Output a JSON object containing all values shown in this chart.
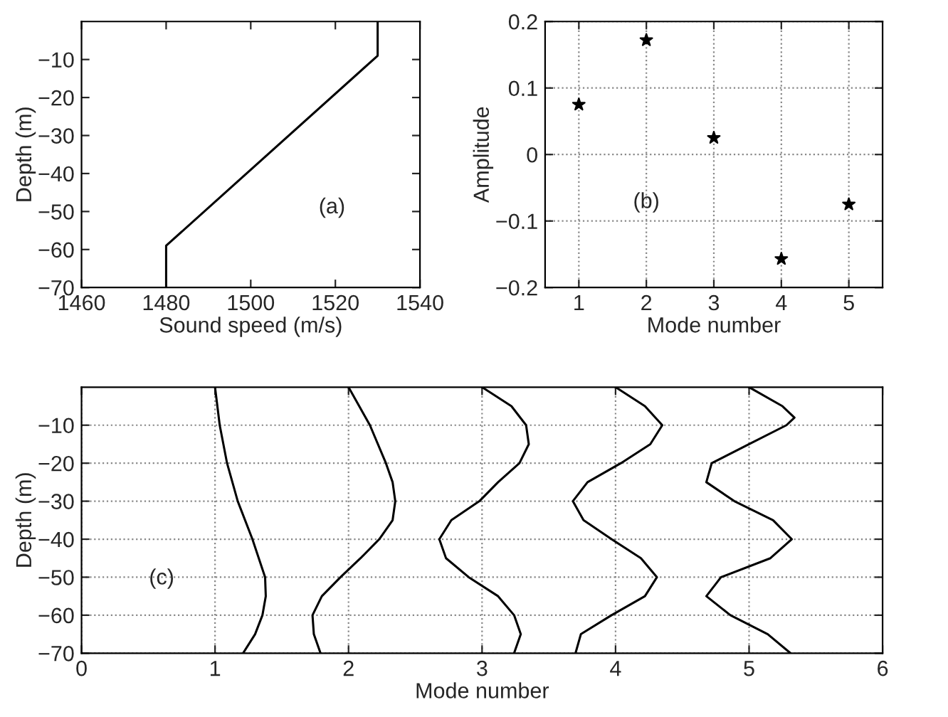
{
  "chart_data": [
    {
      "type": "line",
      "xlabel": "Sound speed (m/s)",
      "ylabel": "Depth (m)",
      "xlim": [
        1460,
        1540
      ],
      "xticks": [
        1460,
        1480,
        1500,
        1520,
        1540
      ],
      "ylim": [
        -70,
        0
      ],
      "yticks": [
        -70,
        -60,
        -50,
        -40,
        -30,
        -20,
        -10
      ],
      "grid": false,
      "legend": false,
      "marker": "none",
      "line_style": "solid",
      "annotations": [
        "(a)"
      ],
      "series": [
        {
          "color": "#000000",
          "x": [
            1530,
            1530,
            1480,
            1480
          ],
          "values": [
            0,
            -9,
            -59,
            -70
          ]
        }
      ]
    },
    {
      "type": "scatter",
      "xlabel": "Mode number",
      "ylabel": "Amplitude",
      "xlim": [
        0.5,
        5.5
      ],
      "xticks": [
        1,
        2,
        3,
        4,
        5
      ],
      "ylim": [
        -0.2,
        0.2
      ],
      "yticks": [
        -0.2,
        -0.1,
        0,
        0.1,
        0.2
      ],
      "grid": true,
      "legend": false,
      "marker": "star",
      "annotations": [
        "(b)"
      ],
      "series": [
        {
          "color": "#000000",
          "x": [
            1,
            2,
            3,
            4,
            5
          ],
          "values": [
            0.075,
            0.172,
            0.025,
            -0.157,
            -0.075
          ]
        }
      ]
    },
    {
      "type": "line",
      "xlabel": "Mode number",
      "ylabel": "Depth (m)",
      "xlim": [
        0,
        6
      ],
      "xticks": [
        0,
        1,
        2,
        3,
        4,
        5,
        6
      ],
      "ylim": [
        -70,
        0
      ],
      "yticks": [
        -70,
        -60,
        -50,
        -40,
        -30,
        -20,
        -10
      ],
      "grid": true,
      "legend": false,
      "marker": "none",
      "line_style": "solid",
      "annotations": [
        "(c)"
      ],
      "series": [
        {
          "color": "#000000",
          "x": [
            1.0,
            1.035,
            1.09,
            1.17,
            1.28,
            1.375,
            1.38,
            1.355,
            1.3,
            1.21
          ],
          "values": [
            0,
            -10,
            -20,
            -30,
            -40,
            -50,
            -55,
            -60,
            -65,
            -70
          ]
        },
        {
          "color": "#000000",
          "x": [
            2.0,
            2.16,
            2.28,
            2.33,
            2.35,
            2.33,
            2.23,
            2.09,
            1.94,
            1.8,
            1.73,
            1.74,
            1.79
          ],
          "values": [
            0,
            -10,
            -20,
            -25,
            -30,
            -35,
            -40,
            -45,
            -50,
            -55,
            -60,
            -65,
            -70
          ]
        },
        {
          "color": "#000000",
          "x": [
            3.0,
            3.22,
            3.33,
            3.35,
            3.28,
            3.12,
            2.98,
            2.77,
            2.68,
            2.73,
            2.9,
            3.12,
            3.24,
            3.29,
            3.24
          ],
          "values": [
            0,
            -5,
            -10,
            -15,
            -20,
            -25,
            -30,
            -35,
            -40,
            -45,
            -50,
            -55,
            -60,
            -65,
            -70
          ]
        },
        {
          "color": "#000000",
          "x": [
            4.0,
            4.22,
            4.35,
            4.26,
            4.04,
            3.79,
            3.68,
            3.76,
            3.97,
            4.19,
            4.31,
            4.22,
            3.97,
            3.74,
            3.7
          ],
          "values": [
            0,
            -5,
            -10,
            -15,
            -20,
            -25,
            -30,
            -35,
            -40,
            -45,
            -50,
            -55,
            -60,
            -65,
            -70
          ]
        },
        {
          "color": "#000000",
          "x": [
            5.0,
            5.25,
            5.34,
            5.28,
            5.0,
            4.72,
            4.68,
            4.89,
            5.18,
            5.32,
            5.16,
            4.79,
            4.68,
            4.86,
            5.14,
            5.31
          ],
          "values": [
            0,
            -5,
            -8,
            -10,
            -15,
            -20,
            -25,
            -30,
            -35,
            -40,
            -45,
            -50,
            -55,
            -60,
            -65,
            -70
          ]
        }
      ]
    }
  ]
}
